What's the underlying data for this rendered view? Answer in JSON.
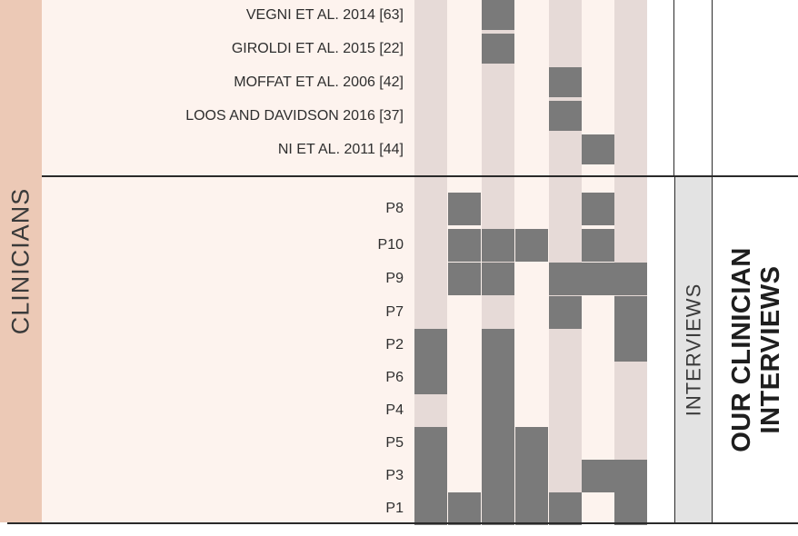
{
  "group_label": "CLINICIANS",
  "method_label": "INTERVIEWS",
  "study_title_line1": "OUR CLINICIAN",
  "study_title_line2": "INTERVIEWS",
  "colors": {
    "cell": "#7a7a7a",
    "stripe": "#e6dad7",
    "background": "#fdf3ee",
    "group": "#ecc9b6",
    "method_box": "#e3e3e3"
  },
  "column_count": 7,
  "literature_rows": [
    {
      "label": "VEGNI ET AL. 2014 [63]",
      "cells": [
        0,
        0,
        1,
        0,
        0,
        0,
        0
      ]
    },
    {
      "label": "GIROLDI ET AL. 2015 [22]",
      "cells": [
        0,
        0,
        1,
        0,
        0,
        0,
        0
      ]
    },
    {
      "label": "MOFFAT ET AL. 2006 [42]",
      "cells": [
        0,
        0,
        0,
        0,
        1,
        0,
        0
      ]
    },
    {
      "label": "LOOS AND DAVIDSON 2016 [37]",
      "cells": [
        0,
        0,
        0,
        0,
        1,
        0,
        0
      ]
    },
    {
      "label": "NI ET AL. 2011 [44]",
      "cells": [
        0,
        0,
        0,
        0,
        0,
        1,
        0
      ]
    }
  ],
  "participant_rows": [
    {
      "label": "P8",
      "cells": [
        0,
        1,
        0,
        0,
        0,
        1,
        0
      ]
    },
    {
      "label": "P10",
      "cells": [
        0,
        1,
        1,
        1,
        0,
        1,
        0
      ]
    },
    {
      "label": "P9",
      "cells": [
        0,
        1,
        1,
        0,
        1,
        1,
        1
      ]
    },
    {
      "label": "P7",
      "cells": [
        0,
        0,
        0,
        0,
        1,
        0,
        1
      ]
    },
    {
      "label": "P2",
      "cells": [
        1,
        0,
        1,
        0,
        0,
        0,
        1
      ]
    },
    {
      "label": "P6",
      "cells": [
        1,
        0,
        1,
        0,
        0,
        0,
        0
      ]
    },
    {
      "label": "P4",
      "cells": [
        0,
        0,
        1,
        0,
        0,
        0,
        0
      ]
    },
    {
      "label": "P5",
      "cells": [
        1,
        0,
        1,
        1,
        0,
        0,
        0
      ]
    },
    {
      "label": "P3",
      "cells": [
        1,
        0,
        1,
        1,
        0,
        1,
        1
      ]
    },
    {
      "label": "P1",
      "cells": [
        1,
        1,
        1,
        1,
        1,
        0,
        1
      ]
    }
  ]
}
